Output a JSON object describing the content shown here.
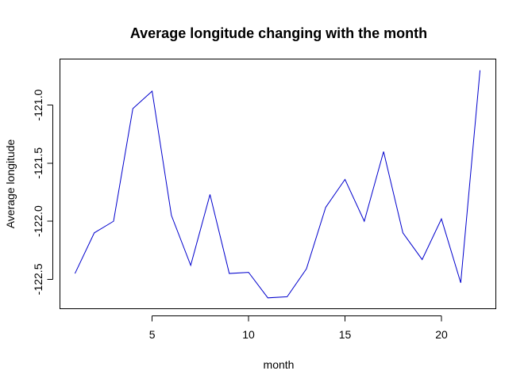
{
  "chart_data": {
    "type": "line",
    "title": "Average longitude changing with the month",
    "xlabel": "month",
    "ylabel": "Average longitude",
    "xlim": [
      0.2,
      22.8
    ],
    "ylim": [
      -122.75,
      -120.6
    ],
    "x_ticks": [
      5,
      10,
      15,
      20
    ],
    "x_tick_labels": [
      "5",
      "10",
      "15",
      "20"
    ],
    "y_ticks": [
      -122.5,
      -122.0,
      -121.5,
      -121.0
    ],
    "y_tick_labels": [
      "-122.5",
      "-122.0",
      "-121.5",
      "-121.0"
    ],
    "grid": false,
    "legend": "none",
    "series": [
      {
        "name": "Average longitude",
        "color": "#0000CD",
        "x": [
          1,
          2,
          3,
          4,
          5,
          6,
          7,
          8,
          9,
          10,
          11,
          12,
          13,
          14,
          15,
          16,
          17,
          18,
          19,
          20,
          21,
          22
        ],
        "values": [
          -122.45,
          -122.1,
          -122.0,
          -121.03,
          -120.88,
          -121.95,
          -122.38,
          -121.77,
          -122.45,
          -122.44,
          -122.66,
          -122.65,
          -122.41,
          -121.88,
          -121.64,
          -122.0,
          -121.4,
          -122.1,
          -122.33,
          -121.98,
          -122.53,
          -120.7
        ]
      }
    ]
  }
}
